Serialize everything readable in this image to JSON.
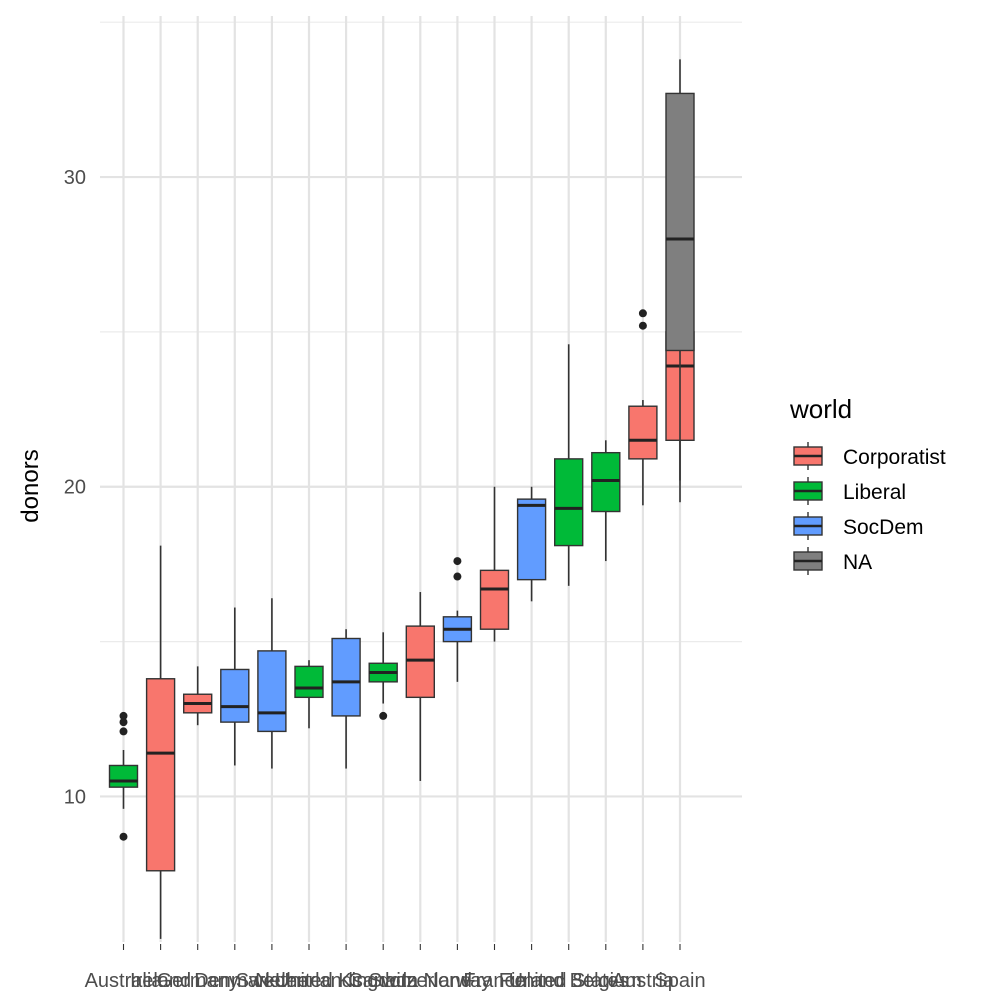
{
  "chart_data": {
    "type": "boxplot",
    "ylabel": "donors",
    "xlabel": "",
    "ylim": [
      5.3,
      35.2
    ],
    "y_ticks": [
      10,
      20,
      30
    ],
    "y_tick_labels": [
      "10",
      "20",
      "30"
    ],
    "grid": true,
    "legend": {
      "title": "world",
      "position": "right",
      "entries": [
        {
          "name": "Corporatist",
          "color": "#F8766D"
        },
        {
          "name": "Liberal",
          "color": "#00BA38"
        },
        {
          "name": "SocDem",
          "color": "#619CFF"
        },
        {
          "name": "NA",
          "color": "#7F7F7F"
        }
      ]
    },
    "categories": [
      "Australia",
      "Ireland",
      "Germany",
      "Denmark",
      "Sweden",
      "Netherlands",
      "United Kingdom",
      "Canada",
      "Switzerland",
      "Norway",
      "France",
      "Finland",
      "United States",
      "Belgium",
      "Austria",
      "Spain"
    ],
    "boxes": [
      {
        "category": "Australia",
        "group": "Liberal",
        "whisker_low": 9.6,
        "q1": 10.3,
        "median": 10.5,
        "q3": 11.0,
        "whisker_high": 11.5,
        "outliers": [
          8.7,
          12.1,
          12.4,
          12.6
        ]
      },
      {
        "category": "Ireland",
        "group": "Corporatist",
        "whisker_low": 5.4,
        "q1": 7.6,
        "median": 11.4,
        "q3": 13.8,
        "whisker_high": 18.1,
        "outliers": []
      },
      {
        "category": "Germany",
        "group": "Corporatist",
        "whisker_low": 12.3,
        "q1": 12.7,
        "median": 13.0,
        "q3": 13.3,
        "whisker_high": 14.2,
        "outliers": []
      },
      {
        "category": "Denmark",
        "group": "SocDem",
        "whisker_low": 11.0,
        "q1": 12.4,
        "median": 12.9,
        "q3": 14.1,
        "whisker_high": 16.1,
        "outliers": []
      },
      {
        "category": "Sweden",
        "group": "SocDem",
        "whisker_low": 10.9,
        "q1": 12.1,
        "median": 12.7,
        "q3": 14.7,
        "whisker_high": 16.4,
        "outliers": []
      },
      {
        "category": "Netherlands",
        "group": "Liberal",
        "whisker_low": 12.2,
        "q1": 13.2,
        "median": 13.5,
        "q3": 14.2,
        "whisker_high": 14.4,
        "outliers": []
      },
      {
        "category": "United Kingdom",
        "group": "SocDem",
        "whisker_low": 10.9,
        "q1": 12.6,
        "median": 13.7,
        "q3": 15.1,
        "whisker_high": 15.4,
        "outliers": []
      },
      {
        "category": "Canada",
        "group": "Liberal",
        "whisker_low": 13.0,
        "q1": 13.7,
        "median": 14.0,
        "q3": 14.3,
        "whisker_high": 15.3,
        "outliers": [
          12.6
        ]
      },
      {
        "category": "Switzerland",
        "group": "Corporatist",
        "whisker_low": 10.5,
        "q1": 13.2,
        "median": 14.4,
        "q3": 15.5,
        "whisker_high": 16.6,
        "outliers": []
      },
      {
        "category": "Norway",
        "group": "SocDem",
        "whisker_low": 13.7,
        "q1": 15.0,
        "median": 15.4,
        "q3": 15.8,
        "whisker_high": 16.0,
        "outliers": [
          17.1,
          17.6
        ]
      },
      {
        "category": "France",
        "group": "Corporatist",
        "whisker_low": 15.0,
        "q1": 15.4,
        "median": 16.7,
        "q3": 17.3,
        "whisker_high": 20.0,
        "outliers": []
      },
      {
        "category": "Finland",
        "group": "SocDem",
        "whisker_low": 16.3,
        "q1": 17.0,
        "median": 19.4,
        "q3": 19.6,
        "whisker_high": 20.0,
        "outliers": []
      },
      {
        "category": "United States",
        "group": "Liberal",
        "whisker_low": 16.8,
        "q1": 18.1,
        "median": 19.3,
        "q3": 20.9,
        "whisker_high": 24.6,
        "outliers": []
      },
      {
        "category": "Belgium",
        "group": "Liberal",
        "whisker_low": 17.6,
        "q1": 19.2,
        "median": 20.2,
        "q3": 21.1,
        "whisker_high": 21.5,
        "outliers": []
      },
      {
        "category": "Austria",
        "group": "Corporatist",
        "whisker_low": 19.4,
        "q1": 20.9,
        "median": 21.5,
        "q3": 22.6,
        "whisker_high": 22.8,
        "outliers": [
          25.2,
          25.6
        ]
      },
      {
        "category": "Spain",
        "group": "Corporatist",
        "whisker_low": 19.5,
        "q1": 21.5,
        "median": 23.9,
        "q3": 25.0,
        "whisker_high": 27.6,
        "outliers": []
      },
      {
        "category": "Spain",
        "group": "NA",
        "whisker_low": 20.2,
        "q1": 24.4,
        "median": 28.0,
        "q3": 32.7,
        "whisker_high": 33.8,
        "outliers": []
      }
    ]
  }
}
